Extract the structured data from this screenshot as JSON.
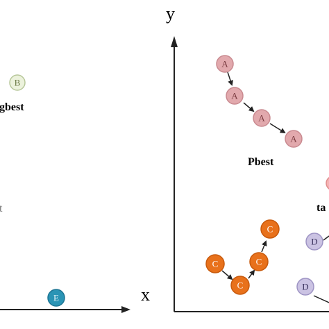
{
  "axes": {
    "x_label": "x",
    "y_label": "y"
  },
  "labels": {
    "gbest": "gbest",
    "pbest": "Pbest",
    "partial_left": "t",
    "partial_right": "ta"
  },
  "node_letters": {
    "a": "A",
    "b": "B",
    "c": "C",
    "d": "D",
    "e": "E"
  },
  "colors": {
    "a_fill": "#e2a9ad",
    "a_stroke": "#c98a90",
    "a_text": "#7a3b40",
    "b_fill": "#ecf2dc",
    "b_stroke": "#b7c79a",
    "b_text": "#6b7a45",
    "c_fill": "#e8711b",
    "c_stroke": "#c85a0d",
    "c_text": "#ffffff",
    "d_fill": "#cbc3e3",
    "d_stroke": "#9e94c4",
    "d_text": "#3d3560",
    "e_fill": "#2a94b5",
    "e_stroke": "#1d7594",
    "e_text": "#e8f6fb",
    "partial_fill": "#f4b3b3",
    "axis": "#222222"
  }
}
